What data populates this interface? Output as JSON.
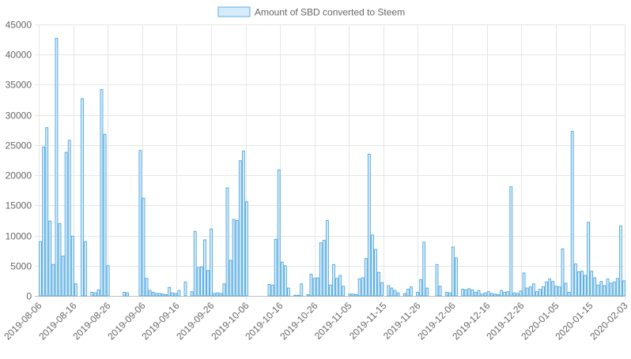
{
  "chart_data": {
    "type": "bar",
    "legend": {
      "label": "Amount of SBD converted to Steem",
      "position": "top",
      "swatch_fill": "#d6ecfa",
      "swatch_stroke": "#5aaee3"
    },
    "colors": {
      "bar_fill": "#d6ecfa",
      "bar_stroke": "#4ea6dd",
      "grid": "#e6e6e6",
      "axis_text": "#666666"
    },
    "grid": true,
    "ylim": [
      0,
      45000
    ],
    "yticks": [
      0,
      5000,
      10000,
      15000,
      20000,
      25000,
      30000,
      35000,
      40000,
      45000
    ],
    "xtick_labels": [
      "2019-08-06",
      "2019-08-16",
      "2019-08-26",
      "2019-09-06",
      "2019-09-16",
      "2019-09-26",
      "2019-10-06",
      "2019-10-16",
      "2019-10-26",
      "2019-11-05",
      "2019-11-15",
      "2019-11-26",
      "2019-12-06",
      "2019-12-16",
      "2019-12-26",
      "2020-01-05",
      "2020-01-15",
      "2020-02-03"
    ],
    "values": [
      9000,
      24700,
      27900,
      12400,
      5200,
      42700,
      12000,
      6600,
      23800,
      25800,
      9900,
      2000,
      0,
      32700,
      9000,
      0,
      600,
      500,
      1000,
      34200,
      26800,
      5000,
      0,
      0,
      0,
      0,
      600,
      500,
      0,
      0,
      0,
      24100,
      16200,
      2900,
      900,
      600,
      400,
      400,
      300,
      200,
      1400,
      500,
      400,
      900,
      0,
      2300,
      0,
      700,
      10700,
      4700,
      4800,
      9300,
      4200,
      11100,
      400,
      500,
      400,
      2000,
      17900,
      5900,
      12700,
      12500,
      22400,
      24000,
      15600,
      0,
      0,
      0,
      0,
      0,
      0,
      1900,
      1800,
      9400,
      20900,
      5600,
      5000,
      1300,
      0,
      100,
      100,
      2000,
      0,
      200,
      3600,
      2900,
      3000,
      8800,
      9200,
      12500,
      1800,
      5200,
      2900,
      3400,
      1600,
      0,
      300,
      300,
      200,
      2800,
      3000,
      6200,
      23500,
      10100,
      7700,
      3900,
      2200,
      0,
      1700,
      1300,
      900,
      500,
      0,
      400,
      1100,
      1500,
      0,
      600,
      2700,
      8900,
      1300,
      0,
      0,
      5200,
      1600,
      0,
      600,
      500,
      8100,
      6300,
      0,
      1100,
      1000,
      1200,
      1000,
      600,
      900,
      300,
      500,
      700,
      400,
      300,
      200,
      900,
      600,
      700,
      18100,
      500,
      400,
      800,
      3800,
      1300,
      1500,
      2000,
      700,
      1100,
      1500,
      2300,
      2800,
      2400,
      1600,
      1500,
      7800,
      2100,
      600,
      27300,
      5300,
      4000,
      4100,
      3400,
      12200,
      4100,
      3000,
      1800,
      2400,
      1700,
      2800,
      2100,
      2300,
      2900,
      11600,
      2500
    ]
  }
}
